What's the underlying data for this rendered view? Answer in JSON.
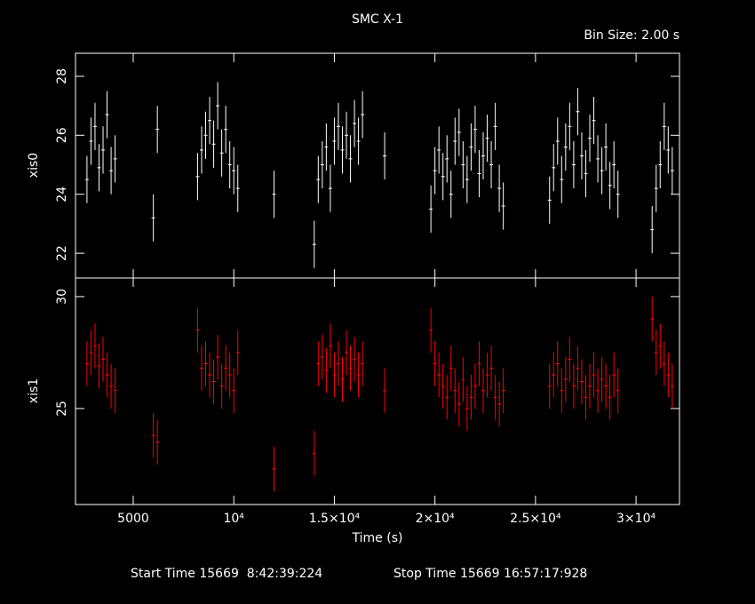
{
  "chart_data": [
    {
      "type": "errorbar",
      "title": "SMC X-1",
      "subtitle": "Bin Size: 2.00 s",
      "ylabel": "xis0",
      "x": [
        2700,
        2900,
        3100,
        3300,
        3500,
        3700,
        3900,
        4100,
        6000,
        6200,
        8200,
        8400,
        8600,
        8800,
        9000,
        9200,
        9400,
        9600,
        9800,
        10000,
        10200,
        12000,
        14000,
        14200,
        14400,
        14600,
        14800,
        15000,
        15200,
        15400,
        15600,
        15800,
        16000,
        16200,
        16400,
        17500,
        19800,
        20000,
        20200,
        20400,
        20600,
        20800,
        21000,
        21200,
        21400,
        21600,
        21800,
        22000,
        22200,
        22400,
        22600,
        22800,
        23000,
        23200,
        23400,
        25700,
        25900,
        26100,
        26300,
        26500,
        26700,
        26900,
        27100,
        27300,
        27500,
        27700,
        27900,
        28100,
        28300,
        28500,
        28700,
        28900,
        29100,
        30800,
        31000,
        31200,
        31400,
        31600,
        31800
      ],
      "series": [
        {
          "color": "#ffffff",
          "error": 0.8,
          "values": [
            24.5,
            25.8,
            26.3,
            24.9,
            25.5,
            26.7,
            24.8,
            25.2,
            23.2,
            26.2,
            24.6,
            25.5,
            26.0,
            26.5,
            25.7,
            27.0,
            25.4,
            26.2,
            25.0,
            24.8,
            24.2,
            24.0,
            22.3,
            24.5,
            25.0,
            25.6,
            24.2,
            25.8,
            26.3,
            25.5,
            26.0,
            25.2,
            26.4,
            25.8,
            26.7,
            25.3,
            23.5,
            24.8,
            25.5,
            24.6,
            25.2,
            24.0,
            25.8,
            26.1,
            25.0,
            24.5,
            25.6,
            26.2,
            24.7,
            25.3,
            25.9,
            25.0,
            26.3,
            24.2,
            23.6,
            23.8,
            24.9,
            25.8,
            24.5,
            25.6,
            26.3,
            25.0,
            26.8,
            25.3,
            24.7,
            25.9,
            26.5,
            25.2,
            24.8,
            25.6,
            24.3,
            25.0,
            24.0,
            22.8,
            24.2,
            25.0,
            26.3,
            25.5,
            24.8
          ]
        }
      ],
      "ylim": [
        21.16,
        28.78
      ],
      "yticks": [
        22,
        24,
        26,
        28
      ]
    },
    {
      "type": "errorbar",
      "ylabel": "xis1",
      "xlabel": "Time (s)",
      "x": [
        2700,
        2900,
        3100,
        3300,
        3500,
        3700,
        3900,
        4100,
        6000,
        6200,
        8200,
        8400,
        8600,
        8800,
        9000,
        9200,
        9400,
        9600,
        9800,
        10000,
        10200,
        12000,
        14000,
        14200,
        14400,
        14600,
        14800,
        15000,
        15200,
        15400,
        15600,
        15800,
        16000,
        16200,
        16400,
        17500,
        19800,
        20000,
        20200,
        20400,
        20600,
        20800,
        21000,
        21200,
        21400,
        21600,
        21800,
        22000,
        22200,
        22400,
        22600,
        22800,
        23000,
        23200,
        23400,
        25700,
        25900,
        26100,
        26300,
        26500,
        26700,
        26900,
        27100,
        27300,
        27500,
        27700,
        27900,
        28100,
        28300,
        28500,
        28700,
        28900,
        29100,
        30800,
        31000,
        31200,
        31400,
        31600,
        31800
      ],
      "series": [
        {
          "color": "#ff0000",
          "error": 1.0,
          "values": [
            27.0,
            27.5,
            27.8,
            26.9,
            27.2,
            26.5,
            26.0,
            25.8,
            23.8,
            23.5,
            28.5,
            26.8,
            27.0,
            26.5,
            26.2,
            27.3,
            26.0,
            26.8,
            26.5,
            25.8,
            27.5,
            22.3,
            23.0,
            27.0,
            27.3,
            26.7,
            27.8,
            26.5,
            27.0,
            26.3,
            27.5,
            26.8,
            27.2,
            26.5,
            27.0,
            25.8,
            28.5,
            27.0,
            26.5,
            26.0,
            25.5,
            26.8,
            25.8,
            25.2,
            26.3,
            25.0,
            25.5,
            26.0,
            27.0,
            25.8,
            26.5,
            26.8,
            25.5,
            25.2,
            25.8,
            26.0,
            26.5,
            27.0,
            25.8,
            26.3,
            27.2,
            26.0,
            26.8,
            26.2,
            25.5,
            26.0,
            26.5,
            25.8,
            26.3,
            26.0,
            25.5,
            26.5,
            25.8,
            29.0,
            27.5,
            27.8,
            27.0,
            26.5,
            26.0
          ]
        }
      ],
      "ylim": [
        20.71,
        30.83
      ],
      "yticks": [
        25,
        30
      ],
      "xlim": [
        2130,
        32160
      ],
      "xticks": [
        5000,
        {
          "value": 10000,
          "label": "10⁴"
        },
        {
          "value": 15000,
          "label": "1.5×10⁴"
        },
        {
          "value": 20000,
          "label": "2×10⁴"
        },
        {
          "value": 25000,
          "label": "2.5×10⁴"
        },
        {
          "value": 30000,
          "label": "3×10⁴"
        }
      ]
    }
  ],
  "footer": {
    "start": "Start Time 15669  8:42:39:224",
    "stop": "Stop Time 15669 16:57:17:928"
  }
}
